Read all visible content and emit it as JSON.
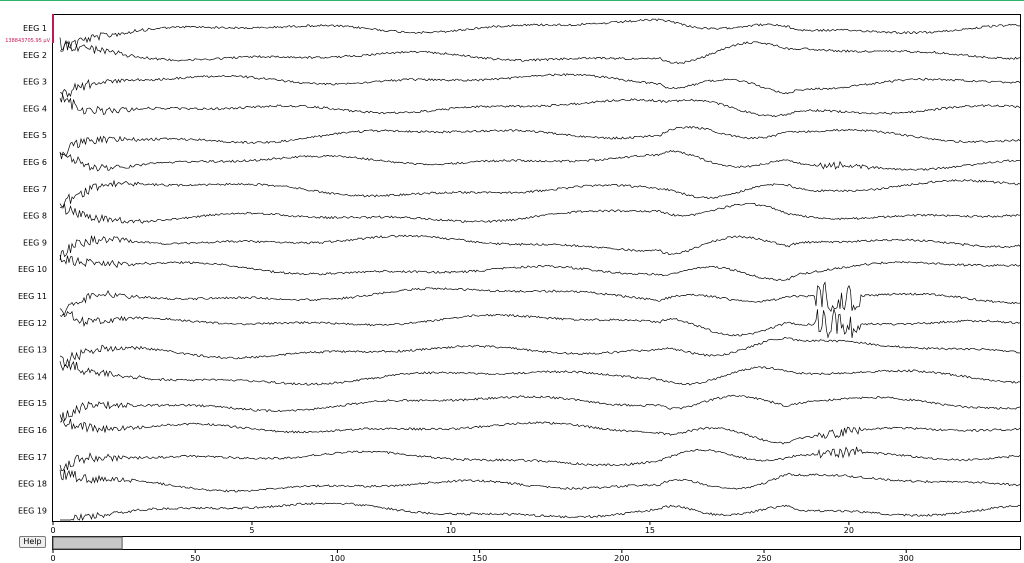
{
  "channels": [
    {
      "label": "EEG 1"
    },
    {
      "label": "EEG 2"
    },
    {
      "label": "EEG 3"
    },
    {
      "label": "EEG 4"
    },
    {
      "label": "EEG 5"
    },
    {
      "label": "EEG 6"
    },
    {
      "label": "EEG 7"
    },
    {
      "label": "EEG 8"
    },
    {
      "label": "EEG 9"
    },
    {
      "label": "EEG 10"
    },
    {
      "label": "EEG 11"
    },
    {
      "label": "EEG 12"
    },
    {
      "label": "EEG 13"
    },
    {
      "label": "EEG 14"
    },
    {
      "label": "EEG 15"
    },
    {
      "label": "EEG 16"
    },
    {
      "label": "EEG 17"
    },
    {
      "label": "EEG 18"
    },
    {
      "label": "EEG 19"
    }
  ],
  "scale_bar": {
    "label": "138843705.95 µV",
    "color": "#c2185b"
  },
  "time_axis": {
    "ticks": [
      "0",
      "5",
      "10",
      "15",
      "20"
    ],
    "range": [
      0,
      24.3
    ]
  },
  "overview_axis": {
    "ticks": [
      "0",
      "50",
      "100",
      "150",
      "200",
      "250",
      "300"
    ],
    "range": [
      0,
      340
    ]
  },
  "overview_window": {
    "start": 0,
    "end": 24.3
  },
  "help_button": {
    "label": "Help"
  },
  "colors": {
    "trace": "#000000",
    "frame": "#000000",
    "accent": "#2fb36a",
    "window_fill": "#c8c8c8"
  }
}
